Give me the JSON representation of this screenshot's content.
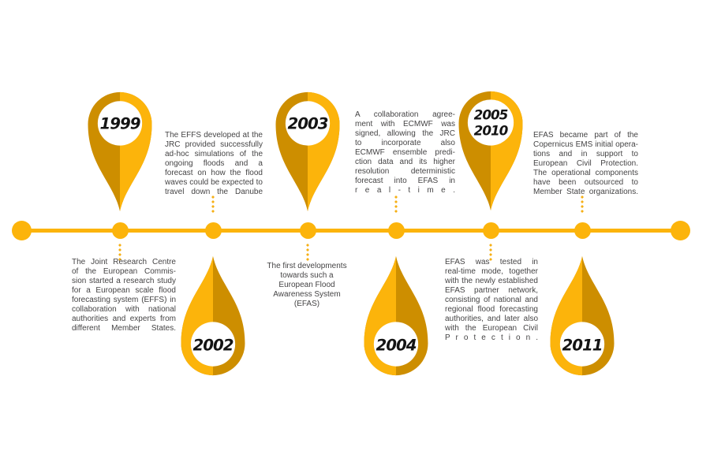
{
  "colors": {
    "gold_bright": "#FCB40B",
    "gold_dark": "#CD8E00",
    "connector_dots": "#F5AF14",
    "body_text": "#454445",
    "year_text": "#141414",
    "pin_circle_fill": "#FFFFFF"
  },
  "timeline": {
    "orientation": "horizontal",
    "marker_icon": "map-pin"
  },
  "events": [
    {
      "year": "1999",
      "side": "top",
      "description_lines": [
        "The Joint Research Centre",
        "of the European Commis-",
        "sion started a research study",
        "for a European scale flood",
        "forecasting system (EFFS) in",
        "collaboration with national",
        "authorities and experts from",
        "different Member States."
      ]
    },
    {
      "year": "2002",
      "side": "bottom",
      "description_lines": [
        "The EFFS developed at the",
        "JRC provided successfully",
        "ad-hoc simulations of the",
        "ongoing floods and a",
        "forecast on how the flood",
        "waves could be expected to",
        "travel down the Danube"
      ]
    },
    {
      "year": "2003",
      "side": "top",
      "description_lines": [
        "The first developments",
        "towards such a",
        "European Flood",
        "Awareness System (EFAS)"
      ]
    },
    {
      "year": "2004",
      "side": "bottom",
      "description_lines": [
        "A collaboration agree-",
        "ment with ECMWF was",
        "signed, allowing the JRC",
        "to incorporate also",
        "ECMWF ensemble predi-",
        "ction data and its higher",
        "resolution deterministic",
        "forecast into EFAS in",
        "r e a l - t i m e ."
      ]
    },
    {
      "year": "2005",
      "year2": "2010",
      "side": "top",
      "description_lines": [
        "EFAS was tested in",
        "real-time mode, together",
        "with the newly established",
        "EFAS partner network,",
        "consisting of national and",
        "regional flood forecasting",
        "authorities, and later also",
        "with the European Civil",
        "P r o t e c t i o n ."
      ]
    },
    {
      "year": "2011",
      "side": "bottom",
      "description_lines": [
        "EFAS became part of the",
        "Copernicus EMS initial opera-",
        "tions and in support to",
        "European Civil Protection.",
        "The operational components",
        "have been outsourced to",
        "Member State organizations."
      ]
    }
  ]
}
